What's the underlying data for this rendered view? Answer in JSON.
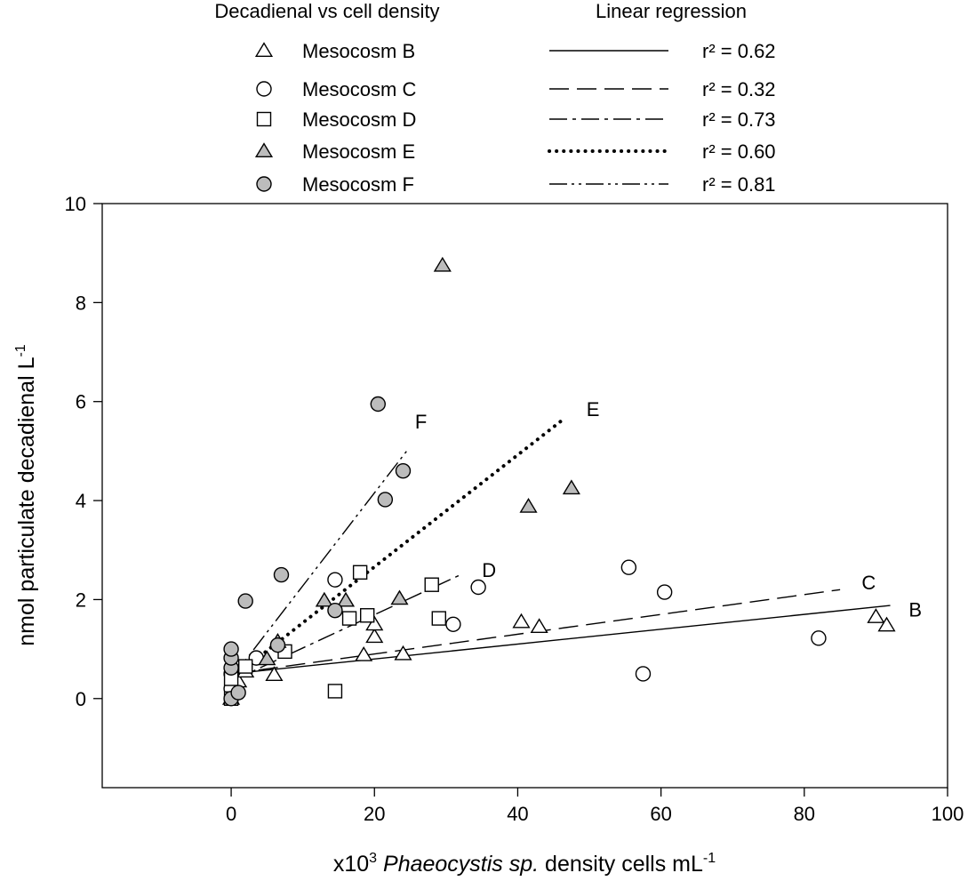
{
  "chart_data": {
    "type": "scatter",
    "xlabel_prefix": "x10",
    "xlabel_exp": "3",
    "xlabel_species": "Phaeocystis sp.",
    "xlabel_suffix": " density cells mL",
    "xlabel_unit_exp": "-1",
    "ylabel": "nmol particulate decadienal L",
    "ylabel_exp": "-1",
    "xlim": [
      -18,
      100
    ],
    "ylim": [
      -1.8,
      10
    ],
    "xticks": [
      0,
      20,
      40,
      60,
      80,
      100
    ],
    "yticks": [
      0,
      2,
      4,
      6,
      8,
      10
    ],
    "legend": {
      "left_title": "Decadienal vs cell density",
      "right_title": "Linear regression"
    },
    "series": [
      {
        "name": "Mesocosm B",
        "label": "B",
        "marker": "triangle",
        "fill": "#ffffff",
        "line_style": "solid",
        "r2": "r² = 0.62",
        "points": [
          [
            0,
            0.0
          ],
          [
            0.3,
            0.15
          ],
          [
            0.6,
            0.25
          ],
          [
            1,
            0.35
          ],
          [
            2,
            0.55
          ],
          [
            6,
            0.48
          ],
          [
            18.5,
            0.88
          ],
          [
            20,
            1.25
          ],
          [
            20,
            1.5
          ],
          [
            24,
            0.9
          ],
          [
            40.5,
            1.55
          ],
          [
            43,
            1.45
          ],
          [
            90,
            1.65
          ],
          [
            91.5,
            1.48
          ]
        ],
        "fit": [
          [
            0,
            0.5
          ],
          [
            92,
            1.88
          ]
        ],
        "fit_label_at": [
          95.5,
          1.8
        ]
      },
      {
        "name": "Mesocosm C",
        "label": "C",
        "marker": "circle",
        "fill": "#ffffff",
        "line_style": "dash",
        "r2": "r² = 0.32",
        "points": [
          [
            0,
            0.2
          ],
          [
            0,
            0.5
          ],
          [
            3.5,
            0.82
          ],
          [
            14.5,
            2.4
          ],
          [
            31,
            1.5
          ],
          [
            34.5,
            2.25
          ],
          [
            55.5,
            2.65
          ],
          [
            57.5,
            0.5
          ],
          [
            60.5,
            2.15
          ],
          [
            82,
            1.22
          ]
        ],
        "fit": [
          [
            0,
            0.5
          ],
          [
            85,
            2.2
          ]
        ],
        "fit_label_at": [
          89,
          2.35
        ]
      },
      {
        "name": "Mesocosm D",
        "label": "D",
        "marker": "square",
        "fill": "#ffffff",
        "line_style": "dashdot",
        "r2": "r² = 0.73",
        "points": [
          [
            0,
            0.0
          ],
          [
            0,
            0.4
          ],
          [
            2,
            0.65
          ],
          [
            7.5,
            0.95
          ],
          [
            14.5,
            0.15
          ],
          [
            16.5,
            1.62
          ],
          [
            18,
            2.55
          ],
          [
            19,
            1.68
          ],
          [
            28,
            2.3
          ],
          [
            29,
            1.62
          ]
        ],
        "fit": [
          [
            0,
            0.35
          ],
          [
            32,
            2.5
          ]
        ],
        "fit_label_at": [
          36,
          2.6
        ]
      },
      {
        "name": "Mesocosm E",
        "label": "E",
        "marker": "triangle",
        "fill": "#bcbcbc",
        "line_style": "dotted",
        "r2": "r² = 0.60",
        "points": [
          [
            5,
            0.8
          ],
          [
            6.5,
            1.15
          ],
          [
            13,
            1.98
          ],
          [
            16,
            1.98
          ],
          [
            23.5,
            2.02
          ],
          [
            29.5,
            8.75
          ],
          [
            41.5,
            3.88
          ],
          [
            47.5,
            4.25
          ]
        ],
        "fit": [
          [
            0,
            0.4
          ],
          [
            46,
            5.6
          ]
        ],
        "fit_label_at": [
          50.5,
          5.85
        ]
      },
      {
        "name": "Mesocosm F",
        "label": "F",
        "marker": "circle",
        "fill": "#bcbcbc",
        "line_style": "dashdotdot",
        "r2": "r² = 0.81",
        "points": [
          [
            0,
            0.0
          ],
          [
            0,
            0.62
          ],
          [
            0,
            0.82
          ],
          [
            0,
            1.0
          ],
          [
            1,
            0.12
          ],
          [
            2,
            1.97
          ],
          [
            7,
            2.5
          ],
          [
            6.5,
            1.08
          ],
          [
            14.5,
            1.78
          ],
          [
            20.5,
            5.95
          ],
          [
            21.5,
            4.02
          ],
          [
            24,
            4.6
          ]
        ],
        "fit": [
          [
            0,
            0.4
          ],
          [
            24.5,
            5.0
          ]
        ],
        "fit_label_at": [
          26.5,
          5.6
        ]
      }
    ]
  }
}
